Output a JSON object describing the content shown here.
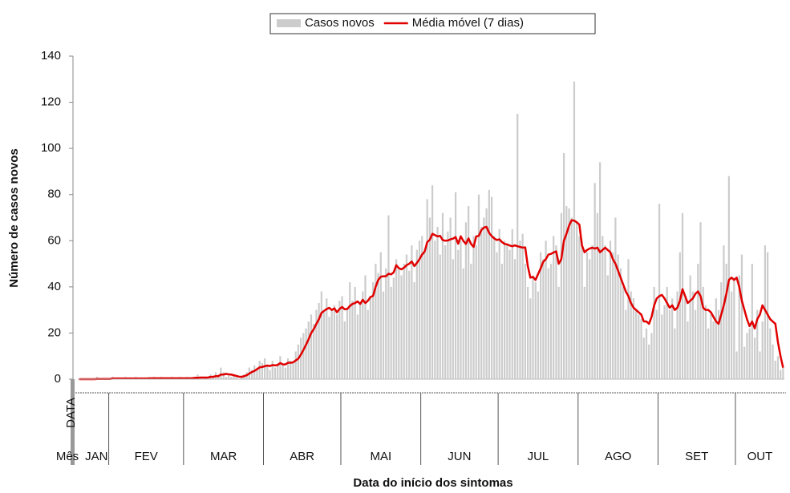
{
  "chart_data": {
    "type": "bar",
    "x_label": "Data do início dos sintomas",
    "y_label": "Número de casos novos",
    "x_level_labels": [
      "DATA",
      "Mês"
    ],
    "ylim": [
      0,
      140
    ],
    "yticks": [
      0,
      20,
      40,
      60,
      80,
      100,
      120,
      140
    ],
    "categories": [
      "JAN",
      null,
      null,
      null,
      null,
      null,
      null,
      null,
      null,
      null,
      null,
      null,
      "FEV",
      null,
      null,
      null,
      null,
      null,
      null,
      null,
      null,
      null,
      null,
      null,
      null,
      null,
      null,
      null,
      null,
      null,
      null,
      null,
      null,
      null,
      null,
      null,
      null,
      null,
      null,
      null,
      null,
      "MAR",
      null,
      null,
      null,
      null,
      null,
      null,
      null,
      null,
      null,
      null,
      null,
      null,
      null,
      null,
      null,
      null,
      null,
      null,
      null,
      null,
      null,
      null,
      null,
      null,
      null,
      null,
      null,
      null,
      null,
      null,
      "ABR",
      null,
      null,
      null,
      null,
      null,
      null,
      null,
      null,
      null,
      null,
      null,
      null,
      null,
      null,
      null,
      null,
      null,
      null,
      null,
      null,
      null,
      null,
      null,
      null,
      null,
      null,
      null,
      null,
      null,
      "MAI",
      null,
      null,
      null,
      null,
      null,
      null,
      null,
      null,
      null,
      null,
      null,
      null,
      null,
      null,
      null,
      null,
      null,
      null,
      null,
      null,
      null,
      null,
      null,
      null,
      null,
      null,
      null,
      null,
      null,
      null,
      "JUN",
      null,
      null,
      null,
      null,
      null,
      null,
      null,
      null,
      null,
      null,
      null,
      null,
      null,
      null,
      null,
      null,
      null,
      null,
      null,
      null,
      null,
      null,
      null,
      null,
      null,
      null,
      null,
      null,
      null,
      "JUL",
      null,
      null,
      null,
      null,
      null,
      null,
      null,
      null,
      null,
      null,
      null,
      null,
      null,
      null,
      null,
      null,
      null,
      null,
      null,
      null,
      null,
      null,
      null,
      null,
      null,
      null,
      null,
      null,
      null,
      null,
      "AGO",
      null,
      null,
      null,
      null,
      null,
      null,
      null,
      null,
      null,
      null,
      null,
      null,
      null,
      null,
      null,
      null,
      null,
      null,
      null,
      null,
      null,
      null,
      null,
      null,
      null,
      null,
      null,
      null,
      null,
      null,
      "SET",
      null,
      null,
      null,
      null,
      null,
      null,
      null,
      null,
      null,
      null,
      null,
      null,
      null,
      null,
      null,
      null,
      null,
      null,
      null,
      null,
      null,
      null,
      null,
      null,
      null,
      null,
      null,
      null,
      null,
      "OUT",
      null,
      null,
      null,
      null,
      null,
      null,
      null,
      null,
      null,
      null,
      null,
      null,
      null,
      null,
      null,
      null,
      null,
      null
    ],
    "series": [
      {
        "name": "Casos novos",
        "type": "bar",
        "color": "#cccccc",
        "values": [
          0,
          0,
          0,
          0,
          0,
          0,
          0,
          1,
          0,
          0,
          0,
          0,
          0,
          1,
          0,
          0,
          0,
          0,
          1,
          0,
          0,
          0,
          1,
          0,
          0,
          0,
          0,
          1,
          0,
          1,
          0,
          0,
          1,
          0,
          0,
          0,
          1,
          0,
          0,
          1,
          0,
          0,
          1,
          0,
          1,
          0,
          2,
          1,
          0,
          1,
          0,
          2,
          1,
          3,
          2,
          5,
          3,
          1,
          2,
          1,
          2,
          1,
          0,
          1,
          2,
          3,
          5,
          4,
          6,
          5,
          8,
          7,
          9,
          6,
          4,
          8,
          5,
          7,
          10,
          6,
          5,
          9,
          8,
          7,
          12,
          15,
          18,
          20,
          22,
          25,
          28,
          24,
          30,
          33,
          38,
          29,
          35,
          27,
          30,
          32,
          28,
          34,
          36,
          25,
          31,
          42,
          34,
          40,
          28,
          33,
          38,
          45,
          30,
          35,
          42,
          50,
          46,
          55,
          38,
          48,
          71,
          40,
          44,
          52,
          48,
          45,
          50,
          54,
          47,
          58,
          42,
          56,
          60,
          62,
          55,
          78,
          70,
          84,
          60,
          66,
          54,
          72,
          58,
          64,
          70,
          52,
          81,
          56,
          60,
          48,
          68,
          75,
          50,
          62,
          58,
          80,
          66,
          70,
          74,
          82,
          79,
          62,
          55,
          65,
          50,
          60,
          58,
          56,
          65,
          52,
          115,
          60,
          63,
          50,
          40,
          35,
          45,
          42,
          38,
          55,
          52,
          60,
          48,
          50,
          62,
          58,
          40,
          72,
          98,
          75,
          74,
          70,
          129,
          68,
          62,
          60,
          40,
          55,
          52,
          58,
          85,
          72,
          94,
          62,
          58,
          45,
          60,
          55,
          70,
          54,
          48,
          40,
          30,
          52,
          38,
          35,
          30,
          28,
          26,
          18,
          22,
          15,
          20,
          40,
          30,
          76,
          28,
          32,
          40,
          30,
          35,
          22,
          38,
          55,
          72,
          35,
          25,
          45,
          38,
          30,
          50,
          68,
          40,
          32,
          22,
          28,
          25,
          35,
          30,
          42,
          58,
          50,
          88,
          38,
          44,
          12,
          45,
          54,
          14,
          20,
          22,
          50,
          18,
          30,
          12,
          25,
          58,
          55,
          22,
          15,
          8,
          10,
          4,
          5
        ]
      },
      {
        "name": "Média móvel (7 dias)",
        "type": "line",
        "color": "#e00000",
        "values": [
          0,
          0,
          0,
          0,
          0,
          0,
          0,
          0.1,
          0.1,
          0.1,
          0.1,
          0.1,
          0.1,
          0.3,
          0.3,
          0.3,
          0.3,
          0.3,
          0.3,
          0.3,
          0.3,
          0.3,
          0.3,
          0.3,
          0.3,
          0.3,
          0.3,
          0.3,
          0.4,
          0.4,
          0.4,
          0.4,
          0.4,
          0.4,
          0.4,
          0.4,
          0.4,
          0.4,
          0.4,
          0.4,
          0.4,
          0.4,
          0.4,
          0.4,
          0.4,
          0.6,
          0.6,
          0.7,
          0.7,
          0.7,
          0.7,
          1.0,
          1.0,
          1.3,
          1.3,
          2.0,
          2.0,
          2.3,
          2.1,
          2.0,
          1.7,
          1.4,
          1.1,
          1.0,
          1.3,
          1.7,
          2.4,
          3.1,
          3.6,
          4.3,
          5.1,
          5.3,
          5.6,
          5.9,
          5.7,
          6.1,
          6.0,
          6.1,
          7.0,
          6.4,
          6.4,
          7.1,
          7.1,
          7.3,
          8.1,
          8.9,
          10.6,
          12.7,
          14.9,
          17.3,
          20.0,
          21.7,
          23.9,
          26.0,
          28.7,
          29.6,
          30.4,
          30.9,
          30.0,
          30.7,
          29.0,
          30.4,
          31.3,
          30.3,
          30.4,
          31.7,
          32.6,
          33.0,
          33.7,
          32.6,
          34.4,
          33.0,
          34.0,
          35.6,
          36.1,
          40.0,
          43.0,
          44.4,
          44.6,
          44.6,
          45.7,
          45.4,
          46.3,
          49.4,
          48.1,
          47.6,
          48.3,
          49.4,
          50.0,
          51.0,
          49.0,
          50.4,
          52.0,
          54.0,
          55.3,
          59.4,
          60.4,
          63.0,
          62.4,
          61.9,
          62.1,
          60.3,
          60.0,
          60.1,
          60.6,
          60.9,
          61.6,
          58.7,
          61.9,
          59.9,
          58.6,
          61.0,
          58.6,
          57.3,
          61.9,
          62.1,
          64.6,
          65.7,
          66.0,
          63.4,
          62.0,
          61.0,
          60.3,
          60.6,
          59.4,
          58.6,
          58.4,
          57.9,
          57.6,
          58.0,
          57.6,
          57.3,
          57.0,
          57.1,
          49.0,
          44.0,
          44.3,
          43.0,
          45.6,
          48.0,
          50.9,
          52.0,
          54.0,
          54.3,
          54.9,
          55.4,
          50.0,
          52.0,
          60.0,
          63.0,
          66.5,
          68.9,
          68.7,
          68.0,
          67.0,
          58.0,
          55.0,
          56.0,
          56.6,
          57.0,
          56.6,
          57.0,
          55.0,
          56.0,
          57.0,
          56.0,
          55.0,
          52.0,
          50.0,
          47.0,
          44.0,
          41.0,
          38.0,
          36.0,
          33.0,
          31.0,
          30.0,
          29.0,
          28.0,
          25.0,
          25.0,
          24.0,
          27.0,
          32.0,
          35.0,
          36.0,
          36.5,
          35.0,
          33.0,
          31.0,
          32.0,
          30.0,
          31.0,
          34.0,
          39.0,
          36.0,
          33.0,
          34.0,
          35.0,
          37.0,
          38.0,
          36.0,
          31.0,
          30.0,
          30.0,
          29.0,
          27.0,
          25.0,
          24.0,
          28.0,
          32.0,
          37.0,
          43.0,
          44.0,
          43.0,
          44.0,
          40.0,
          34.0,
          30.0,
          26.0,
          23.0,
          25.0,
          22.0,
          26.0,
          28.0,
          32.0,
          30.0,
          28.0,
          26.0,
          25.0,
          24.0,
          16.0,
          10.0,
          5.0
        ]
      }
    ]
  }
}
